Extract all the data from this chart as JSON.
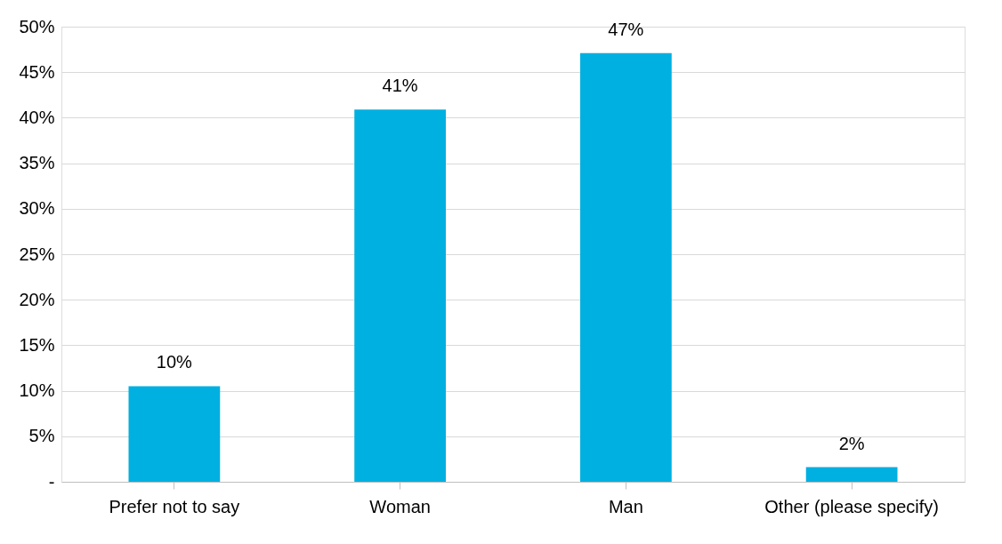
{
  "chart_data": {
    "type": "bar",
    "categories": [
      "Prefer not to say",
      "Woman",
      "Man",
      "Other (please specify)"
    ],
    "values": [
      10.5,
      40.9,
      47.1,
      1.6
    ],
    "value_labels": [
      "10%",
      "41%",
      "47%",
      "2%"
    ],
    "color": "#00b0e0",
    "ylim": [
      0,
      50
    ],
    "yticks": [
      {
        "value": 0,
        "label": "-"
      },
      {
        "value": 5,
        "label": "5%"
      },
      {
        "value": 10,
        "label": "10%"
      },
      {
        "value": 15,
        "label": "15%"
      },
      {
        "value": 20,
        "label": "20%"
      },
      {
        "value": 25,
        "label": "25%"
      },
      {
        "value": 30,
        "label": "30%"
      },
      {
        "value": 35,
        "label": "35%"
      },
      {
        "value": 40,
        "label": "40%"
      },
      {
        "value": 45,
        "label": "45%"
      },
      {
        "value": 50,
        "label": "50%"
      }
    ],
    "grid": "y"
  }
}
